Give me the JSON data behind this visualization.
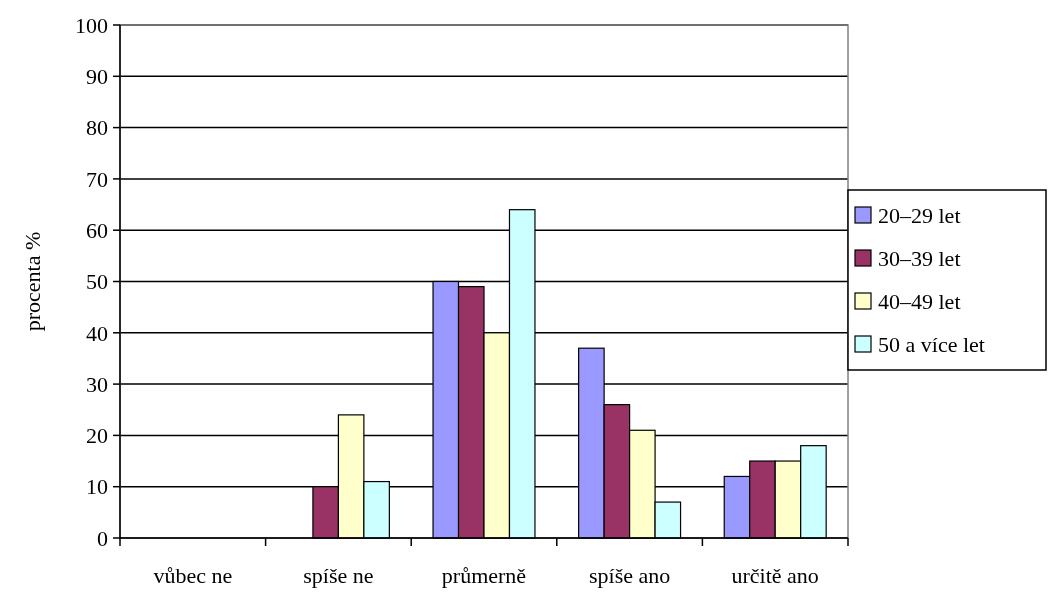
{
  "chart_data": {
    "type": "bar",
    "ylabel": "procenta %",
    "categories": [
      "vůbec ne",
      "spíše ne",
      "průmerně",
      "spíše ano",
      "určitě ano"
    ],
    "series": [
      {
        "name": "20–29 let",
        "color": "#9999ff",
        "values": [
          0,
          0,
          50,
          37,
          12
        ]
      },
      {
        "name": "30–39 let",
        "color": "#993366",
        "values": [
          0,
          10,
          49,
          26,
          15
        ]
      },
      {
        "name": "40–49 let",
        "color": "#ffffcc",
        "values": [
          0,
          24,
          40,
          21,
          15
        ]
      },
      {
        "name": "50 a více let",
        "color": "#ccffff",
        "values": [
          0,
          11,
          64,
          7,
          18
        ]
      }
    ],
    "ylim": [
      0,
      100
    ],
    "yticks": [
      0,
      10,
      20,
      30,
      40,
      50,
      60,
      70,
      80,
      90,
      100
    ],
    "grid": "y",
    "legend": "right"
  }
}
